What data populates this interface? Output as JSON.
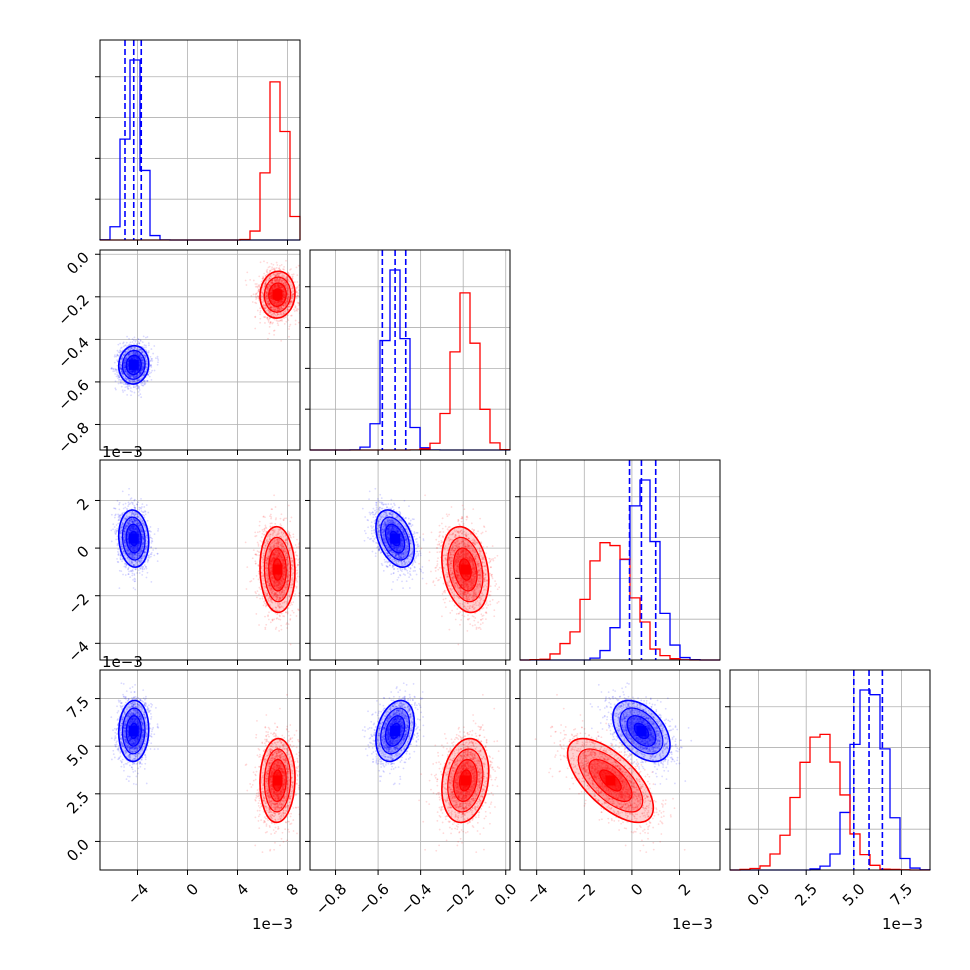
{
  "chart_data": {
    "type": "corner",
    "legend": "none",
    "grid": true,
    "parameters": [
      {
        "range": [
          -0.007,
          0.009
        ],
        "ticks": [
          -0.004,
          0.0,
          0.004,
          0.008
        ],
        "tick_labels": [
          "−4",
          "0",
          "4",
          "8"
        ],
        "offset_label": "1e−3"
      },
      {
        "range": [
          -0.92,
          0.02
        ],
        "ticks": [
          -0.8,
          -0.6,
          -0.4,
          -0.2,
          0.0
        ],
        "tick_labels": [
          "−0.8",
          "−0.6",
          "−0.4",
          "−0.2",
          "0.0"
        ],
        "offset_label": ""
      },
      {
        "range": [
          -0.0047,
          0.0037
        ],
        "ticks": [
          -0.004,
          -0.002,
          0.0,
          0.002
        ],
        "tick_labels": [
          "−4",
          "−2",
          "0",
          "2"
        ],
        "offset_label": "1e−3"
      },
      {
        "range": [
          -0.0015,
          0.009
        ],
        "ticks": [
          0.0,
          0.0025,
          0.005,
          0.0075
        ],
        "tick_labels": [
          "0.0",
          "2.5",
          "5.0",
          "7.5"
        ],
        "offset_label": "1e−3"
      }
    ],
    "series": [
      {
        "color": "#0000ff",
        "mean": [
          -0.0043,
          -0.52,
          0.0004,
          0.0058
        ],
        "std": [
          0.0006,
          0.045,
          0.0006,
          0.0008
        ],
        "corr": [
          [
            1.0,
            0.05,
            -0.1,
            0.05
          ],
          [
            0.05,
            1.0,
            -0.4,
            0.3
          ],
          [
            -0.1,
            -0.4,
            1.0,
            -0.45
          ],
          [
            0.05,
            0.3,
            -0.45,
            1.0
          ]
        ],
        "quantiles_16_50_84": [
          [
            -0.005,
            -0.0043,
            -0.0037
          ],
          [
            -0.58,
            -0.52,
            -0.47
          ],
          [
            -0.0001,
            0.0004,
            0.001
          ],
          [
            0.005,
            0.0058,
            0.0065
          ]
        ]
      },
      {
        "color": "#ff0000",
        "mean": [
          0.0072,
          -0.19,
          -0.0009,
          0.0032
        ],
        "std": [
          0.0007,
          0.055,
          0.0009,
          0.0011
        ],
        "corr": [
          [
            1.0,
            0.05,
            -0.05,
            0.05
          ],
          [
            0.05,
            1.0,
            -0.25,
            0.2
          ],
          [
            -0.05,
            -0.25,
            1.0,
            -0.65
          ],
          [
            0.05,
            0.2,
            -0.65,
            1.0
          ]
        ]
      }
    ]
  }
}
